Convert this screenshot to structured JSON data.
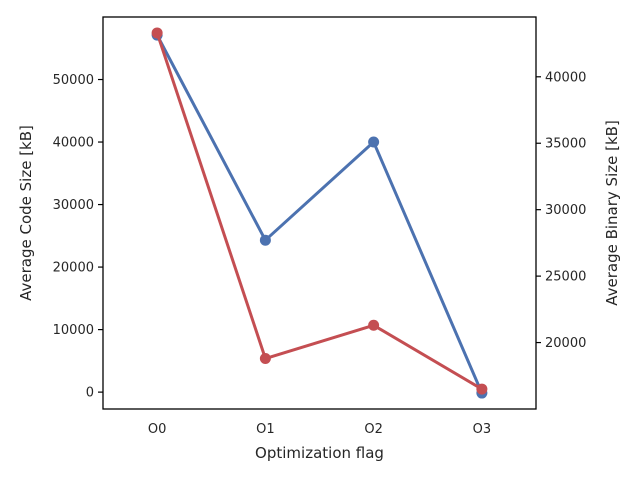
{
  "chart_data": {
    "type": "line",
    "categories": [
      "O0",
      "O1",
      "O2",
      "O3"
    ],
    "xlabel": "Optimization flag",
    "ylabel_left": "Average Code Size [kB]",
    "ylabel_right": "Average Binary Size [kB]",
    "left_axis": {
      "ylim": [
        -2700,
        60000
      ],
      "ticks": [
        0,
        10000,
        20000,
        30000,
        40000,
        50000
      ]
    },
    "right_axis": {
      "ylim": [
        15000,
        44500
      ],
      "ticks": [
        20000,
        25000,
        30000,
        35000,
        40000
      ]
    },
    "grid": false,
    "series": [
      {
        "axis": "left",
        "color": "#4c72b0",
        "values": [
          57100,
          24300,
          40000,
          -150
        ]
      },
      {
        "axis": "right",
        "color": "#c44e52",
        "values": [
          43300,
          18800,
          21300,
          16500
        ]
      }
    ]
  }
}
